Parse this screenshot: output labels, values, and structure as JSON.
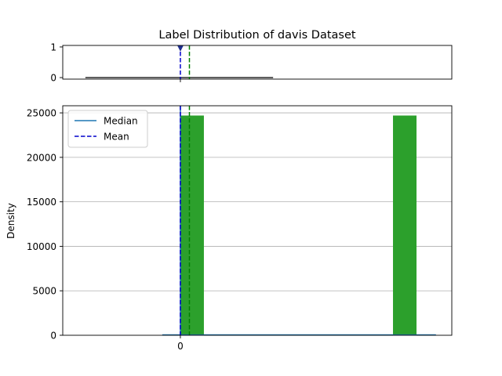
{
  "chart_data": {
    "type": "bar",
    "title": "Label Distribution of davis Dataset",
    "ylabel": "Density",
    "xlabel": "",
    "xlim": [
      -2.6,
      6.0
    ],
    "x_ticks": [
      0
    ],
    "x_tick_labels": [
      "0"
    ],
    "box": {
      "ylim": [
        -0.05,
        1.05
      ],
      "y_ticks": [
        0,
        1
      ],
      "y_tick_labels": [
        "0",
        "1"
      ],
      "whisker_low": -2.1,
      "whisker_high": 2.05,
      "outlier_x": 0,
      "outlier_y": 0.95
    },
    "hist": {
      "ylim": [
        0,
        25800
      ],
      "y_ticks": [
        0,
        5000,
        10000,
        15000,
        20000,
        25000
      ],
      "y_tick_labels": [
        "0",
        "5000",
        "10000",
        "15000",
        "20000",
        "25000"
      ],
      "grid": true,
      "bars": [
        {
          "x0": 0.0,
          "x1": 0.52,
          "value": 24700
        },
        {
          "x0": 4.7,
          "x1": 5.22,
          "value": 24700
        }
      ],
      "baseline_range": [
        -0.4,
        5.65
      ],
      "median_x": 0.0,
      "mean_x": 0.0,
      "green_dash_x": 0.2
    },
    "legend": {
      "position": "top-left",
      "entries": [
        {
          "label": "Median",
          "style": "solid",
          "color": "#1f77b4"
        },
        {
          "label": "Mean",
          "style": "dashed",
          "color": "#0000cc"
        }
      ]
    },
    "colors": {
      "bar": "#2ca02c",
      "median": "#1f77b4",
      "mean": "#0000cc",
      "green_dash": "#008000",
      "grid": "#b0b0b0",
      "outlier": "#1f2f8f"
    }
  }
}
